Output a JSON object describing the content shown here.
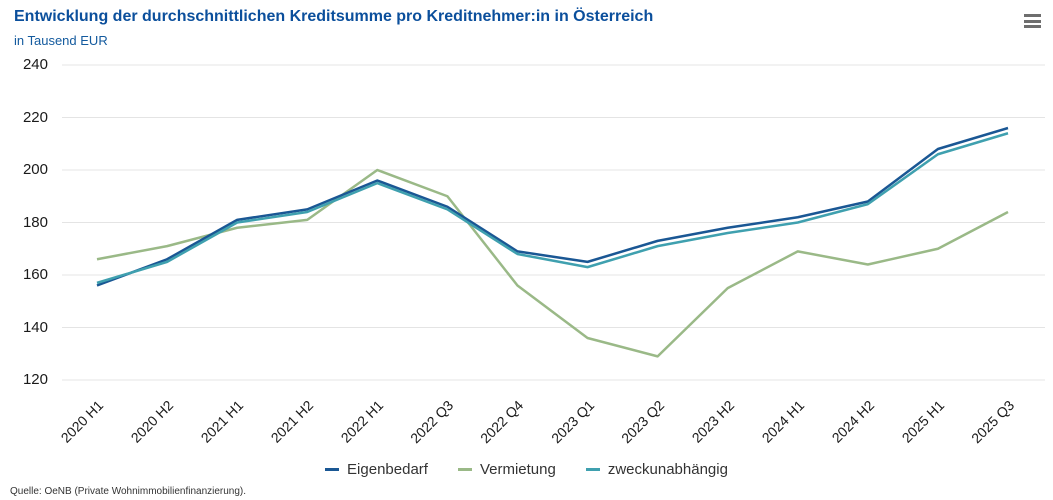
{
  "header": {
    "title": "Entwicklung der durchschnittlichen Kreditsumme pro Kreditnehmer:in in Österreich",
    "subtitle": "in Tausend EUR"
  },
  "icons": {
    "menu": "hamburger-menu-icon"
  },
  "colors": {
    "title_blue": "#0b4f9c",
    "grid": "#e4e4e4",
    "axis_text": "#1a1a1a",
    "legend_text": "#333333",
    "menu_icon": "#6e6e6e"
  },
  "chart_data": {
    "type": "line",
    "title": "Entwicklung der durchschnittlichen Kreditsumme pro Kreditnehmer:in in Österreich",
    "ylabel": "in Tausend EUR",
    "xlabel": "",
    "categories": [
      "2020 H1",
      "2020 H2",
      "2021 H1",
      "2021 H2",
      "2022 H1",
      "2022 Q3",
      "2022 Q4",
      "2023 Q1",
      "2023 Q2",
      "2023 H2",
      "2024 H1",
      "2024 H2",
      "2025 H1",
      "2025 Q3"
    ],
    "series": [
      {
        "name": "Eigenbedarf",
        "color": "#1a5794",
        "values": [
          156,
          166,
          181,
          185,
          196,
          186,
          169,
          165,
          173,
          178,
          182,
          188,
          208,
          216
        ]
      },
      {
        "name": "Vermietung",
        "color": "#9ab987",
        "values": [
          166,
          171,
          178,
          181,
          200,
          190,
          156,
          136,
          129,
          155,
          169,
          164,
          170,
          184
        ]
      },
      {
        "name": "zweckunabhängig",
        "color": "#3fa0af",
        "values": [
          157,
          165,
          180,
          184,
          195,
          185,
          168,
          163,
          171,
          176,
          180,
          187,
          206,
          214
        ]
      }
    ],
    "ylim": [
      120,
      240
    ],
    "yticks": [
      240,
      220,
      200,
      180,
      160,
      140,
      120
    ],
    "grid": "horizontal",
    "legend_position": "bottom"
  },
  "source": "Quelle: OeNB (Private Wohnimmobilienfinanzierung)."
}
